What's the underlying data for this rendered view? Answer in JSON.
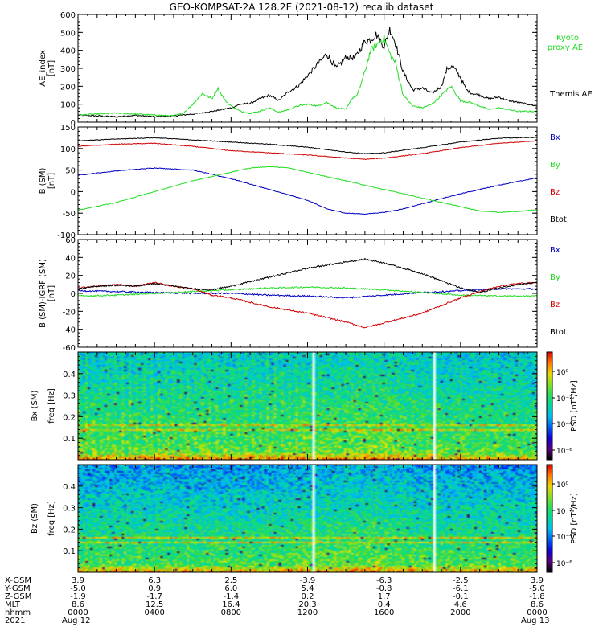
{
  "title": "GEO-KOMPSAT-2A 128.2E (2021-08-12) recalib dataset",
  "colors": {
    "black": "#000000",
    "red": "#d00000",
    "green": "#22dd22",
    "blue": "#0000c0",
    "frame": "#000000"
  },
  "chart_data": [
    {
      "type": "line",
      "panel": "ae_index",
      "ylabel": "AE_index [nT]",
      "ylim": [
        0,
        600
      ],
      "yticks": [
        0,
        100,
        200,
        300,
        400,
        500,
        600
      ],
      "series": [
        {
          "name": "Themis AE",
          "color": "#000000",
          "x": [
            0,
            1,
            2,
            3,
            4,
            5,
            6,
            7,
            7.5,
            8,
            8.5,
            9,
            9.5,
            10,
            10.5,
            11,
            11.5,
            12,
            12.5,
            13,
            13.5,
            14,
            14.5,
            15,
            15.3,
            15.6,
            16,
            16.3,
            16.6,
            17,
            17.5,
            18,
            18.5,
            19,
            19.3,
            19.6,
            20,
            20.3,
            20.6,
            21,
            21.5,
            22,
            22.5,
            23,
            24
          ],
          "values": [
            40,
            35,
            30,
            38,
            30,
            35,
            45,
            60,
            70,
            80,
            100,
            105,
            130,
            150,
            120,
            170,
            200,
            260,
            320,
            380,
            300,
            360,
            360,
            450,
            460,
            490,
            420,
            520,
            440,
            280,
            180,
            190,
            160,
            200,
            300,
            310,
            250,
            180,
            160,
            150,
            130,
            140,
            120,
            110,
            90
          ]
        },
        {
          "name": "Kyoto proxy AE",
          "color": "#22dd22",
          "x": [
            0,
            1,
            2,
            3,
            4,
            5,
            5.5,
            6,
            6.5,
            7,
            7.3,
            7.7,
            8,
            8.5,
            9,
            9.5,
            10,
            10.5,
            11,
            11.5,
            12,
            12.5,
            13,
            13.5,
            14,
            14.3,
            14.6,
            15,
            15.3,
            15.6,
            16,
            16.3,
            16.6,
            17,
            17.5,
            18,
            18.5,
            19,
            19.5,
            20,
            20.5,
            21,
            21.5,
            22,
            23,
            24
          ],
          "values": [
            40,
            45,
            50,
            45,
            40,
            35,
            50,
            100,
            160,
            130,
            190,
            120,
            90,
            60,
            50,
            60,
            80,
            55,
            70,
            90,
            100,
            90,
            110,
            80,
            70,
            130,
            150,
            280,
            400,
            430,
            470,
            380,
            330,
            150,
            90,
            80,
            100,
            150,
            200,
            120,
            110,
            90,
            70,
            80,
            60,
            60
          ]
        }
      ],
      "legend": [
        "Kyoto proxy AE",
        "Themis AE"
      ]
    },
    {
      "type": "line",
      "panel": "b_sm",
      "ylabel": "B (SM) [nT]",
      "ylim": [
        -100,
        150
      ],
      "yticks": [
        -100,
        -50,
        0,
        50,
        100,
        150
      ],
      "series": [
        {
          "name": "Bx",
          "color": "#0000c0",
          "x": [
            0,
            2,
            4,
            6,
            8,
            10,
            12,
            13,
            14,
            15,
            16,
            17,
            18,
            20,
            22,
            24
          ],
          "values": [
            38,
            48,
            55,
            50,
            30,
            5,
            -20,
            -40,
            -50,
            -52,
            -48,
            -40,
            -28,
            -5,
            15,
            32
          ]
        },
        {
          "name": "By",
          "color": "#22dd22",
          "x": [
            0,
            2,
            4,
            6,
            8,
            9,
            10,
            11,
            12,
            14,
            16,
            18,
            20,
            21,
            22,
            23,
            24
          ],
          "values": [
            -43,
            -25,
            0,
            25,
            45,
            55,
            58,
            55,
            45,
            25,
            5,
            -15,
            -35,
            -45,
            -48,
            -46,
            -42
          ]
        },
        {
          "name": "Bz",
          "color": "#d00000",
          "x": [
            0,
            2,
            4,
            6,
            8,
            10,
            12,
            14,
            15,
            16,
            18,
            20,
            22,
            24
          ],
          "values": [
            105,
            110,
            112,
            105,
            95,
            90,
            85,
            78,
            75,
            78,
            88,
            102,
            112,
            118
          ]
        },
        {
          "name": "Btot",
          "color": "#000000",
          "x": [
            0,
            2,
            4,
            6,
            8,
            10,
            12,
            14,
            15,
            16,
            18,
            20,
            22,
            24
          ],
          "values": [
            118,
            122,
            125,
            120,
            115,
            110,
            103,
            92,
            88,
            90,
            102,
            115,
            124,
            126
          ]
        }
      ],
      "legend": [
        "Bx",
        "By",
        "Bz",
        "Btot"
      ]
    },
    {
      "type": "line",
      "panel": "b_minus_igrf",
      "ylabel": "B (SM)-IGRF (SM) [nT]",
      "ylim": [
        -60,
        60
      ],
      "yticks": [
        -60,
        -40,
        -20,
        0,
        20,
        40,
        60
      ],
      "series": [
        {
          "name": "Bx",
          "color": "#0000c0",
          "x": [
            0,
            2,
            4,
            6,
            8,
            10,
            12,
            14,
            16,
            18,
            20,
            22,
            24
          ],
          "values": [
            3,
            2,
            1,
            0,
            0,
            -2,
            -3,
            -5,
            -2,
            1,
            3,
            5,
            5
          ]
        },
        {
          "name": "By",
          "color": "#22dd22",
          "x": [
            0,
            2,
            4,
            6,
            8,
            10,
            12,
            14,
            15,
            16,
            18,
            20,
            22,
            24
          ],
          "values": [
            -3,
            -2,
            0,
            2,
            4,
            6,
            7,
            6,
            5,
            4,
            1,
            -2,
            -3,
            -3
          ]
        },
        {
          "name": "Bz",
          "color": "#d00000",
          "x": [
            0,
            1,
            2,
            3,
            4,
            5,
            6,
            7,
            8,
            10,
            12,
            14,
            15,
            16,
            18,
            20,
            21,
            22,
            23,
            24
          ],
          "values": [
            6,
            8,
            10,
            8,
            12,
            8,
            5,
            -2,
            -5,
            -15,
            -22,
            -32,
            -38,
            -33,
            -22,
            -5,
            2,
            8,
            11,
            12
          ]
        },
        {
          "name": "Btot",
          "color": "#000000",
          "x": [
            0,
            1,
            2,
            3,
            4,
            5,
            6,
            7,
            8,
            10,
            12,
            14,
            15,
            16,
            18,
            20,
            21,
            22,
            23,
            24
          ],
          "values": [
            5,
            8,
            9,
            8,
            11,
            8,
            5,
            4,
            8,
            18,
            28,
            35,
            38,
            34,
            22,
            6,
            1,
            6,
            10,
            12
          ]
        }
      ],
      "legend": [
        "Bx",
        "By",
        "Bz",
        "Btot"
      ]
    },
    {
      "type": "heatmap",
      "panel": "bx_spectrogram",
      "ylabel": "Bx (SM) freq [Hz]",
      "ylim": [
        0,
        0.5
      ],
      "yticks": [
        0.1,
        0.2,
        0.3,
        0.4
      ],
      "colorbar_label": "PSD [nT²/Hz]",
      "colorbar_ticks": [
        "10⁰",
        "10⁻²",
        "10⁻⁴",
        "10⁻⁶"
      ],
      "data_gaps_hours": [
        12.3,
        18.6
      ]
    },
    {
      "type": "heatmap",
      "panel": "bz_spectrogram",
      "ylabel": "Bz (SM) freq [Hz]",
      "ylim": [
        0,
        0.5
      ],
      "yticks": [
        0.1,
        0.2,
        0.3,
        0.4
      ],
      "colorbar_label": "PSD [nT²/Hz]",
      "colorbar_ticks": [
        "10⁰",
        "10⁻²",
        "10⁻⁴",
        "10⁻⁶"
      ],
      "data_gaps_hours": [
        12.3,
        18.6
      ]
    }
  ],
  "ephemeris": {
    "row_labels": [
      "X-GSM",
      "Y-GSM",
      "Z-GSM",
      "MLT",
      "hhmm",
      "2021"
    ],
    "tick_hours": [
      0,
      4,
      8,
      12,
      16,
      20,
      24
    ],
    "columns": [
      [
        "3.9",
        "-5.0",
        "-1.9",
        "8.6",
        "0000",
        "Aug 12"
      ],
      [
        "6.3",
        "0.9",
        "-1.7",
        "12.5",
        "0400",
        ""
      ],
      [
        "2.5",
        "6.0",
        "-1.4",
        "16.4",
        "0800",
        ""
      ],
      [
        "-3.9",
        "5.4",
        "0.2",
        "20.3",
        "1200",
        ""
      ],
      [
        "-6.3",
        "-0.8",
        "1.7",
        "0.4",
        "1600",
        ""
      ],
      [
        "-2.5",
        "-6.1",
        "-0.1",
        "4.6",
        "2000",
        ""
      ],
      [
        "3.9",
        "-5.0",
        "-1.8",
        "8.6",
        "0000",
        "Aug 13"
      ]
    ]
  }
}
